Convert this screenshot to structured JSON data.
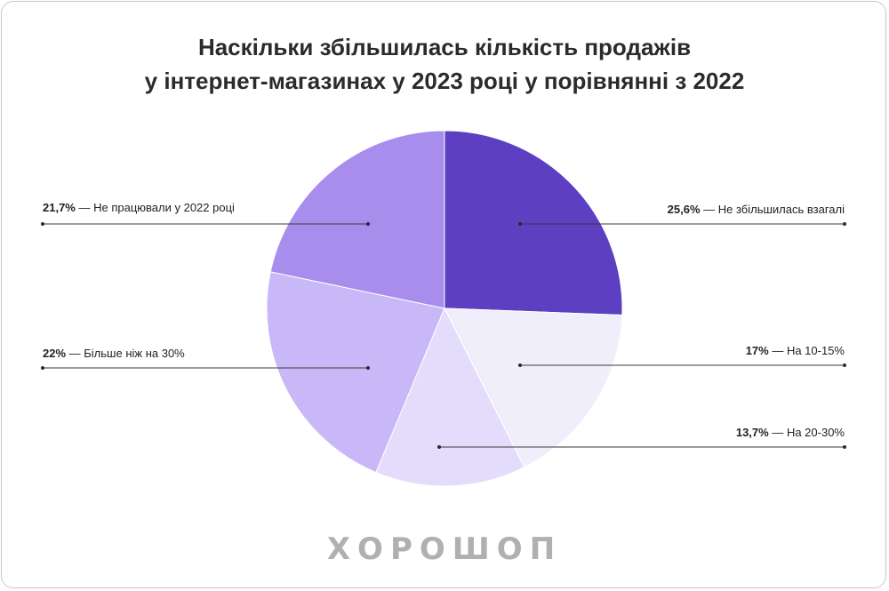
{
  "header": {
    "title_line1": "Наскільки збільшилась кількість продажів",
    "title_line2": "у інтернет-магазинах у 2023 році у порівнянні з 2022"
  },
  "brand": {
    "logo_text": "ХОРОШОП"
  },
  "chart_data": {
    "type": "pie",
    "slices": [
      {
        "label": "Не збільшилась взагалі",
        "value": 25.6,
        "value_text": "25,6%",
        "color": "#5d3fc2"
      },
      {
        "label": "На 10-15%",
        "value": 17,
        "value_text": "17%",
        "color": "#f1eefc"
      },
      {
        "label": "На 20-30%",
        "value": 13.7,
        "value_text": "13,7%",
        "color": "#e4dcfb"
      },
      {
        "label": "Більше ніж на 30%",
        "value": 22,
        "value_text": "22%",
        "color": "#c9b8f7"
      },
      {
        "label": "Не працювали у 2022 році",
        "value": 21.7,
        "value_text": "21,7%",
        "color": "#a88ded"
      }
    ],
    "start": "12 o'clock",
    "direction": "clockwise"
  }
}
